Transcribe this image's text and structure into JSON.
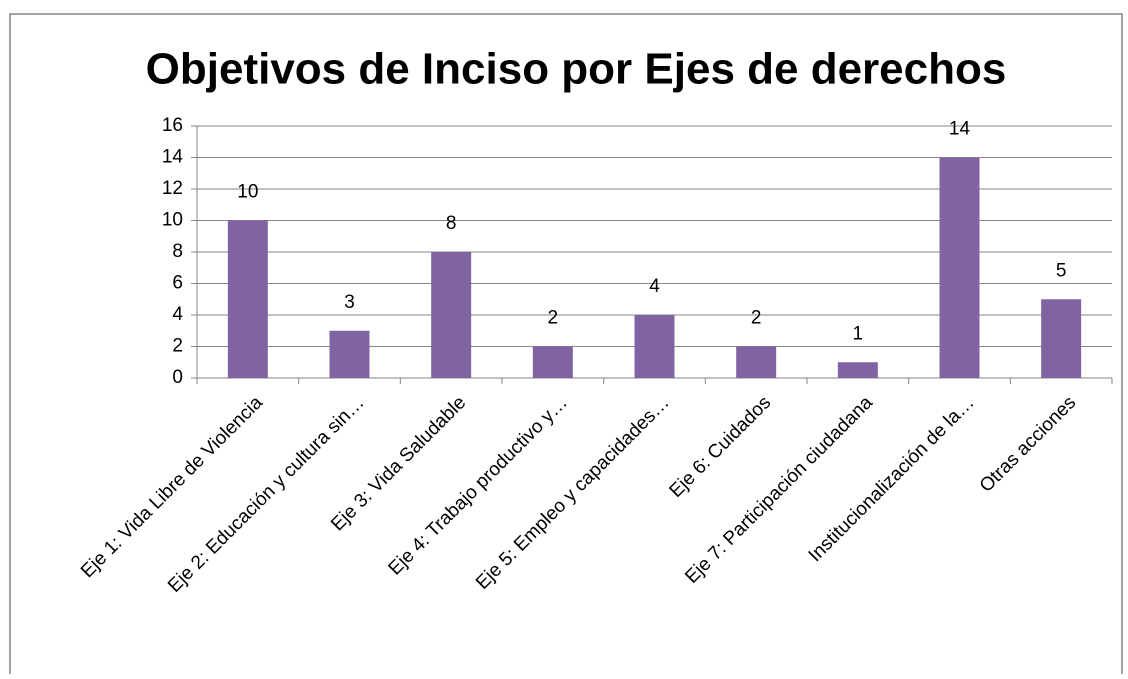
{
  "chart_data": {
    "type": "bar",
    "title": "Objetivos de Inciso por Ejes de derechos",
    "categories": [
      "Eje 1: Vida Libre de Violencia",
      "Eje 2: Educación y cultura sin…",
      "Eje 3: Vida Saludable",
      "Eje 4: Trabajo productivo y…",
      "Eje 5: Empleo y capacidades…",
      "Eje 6: Cuidados",
      "Eje 7: Participación ciudadana",
      "Institucionalización de la…",
      "Otras acciones"
    ],
    "values": [
      10,
      3,
      8,
      2,
      4,
      2,
      1,
      14,
      5
    ],
    "color": "#8064a2",
    "ylim": [
      0,
      16
    ],
    "yticks": [
      0,
      2,
      4,
      6,
      8,
      10,
      12,
      14,
      16
    ],
    "grid": true
  }
}
